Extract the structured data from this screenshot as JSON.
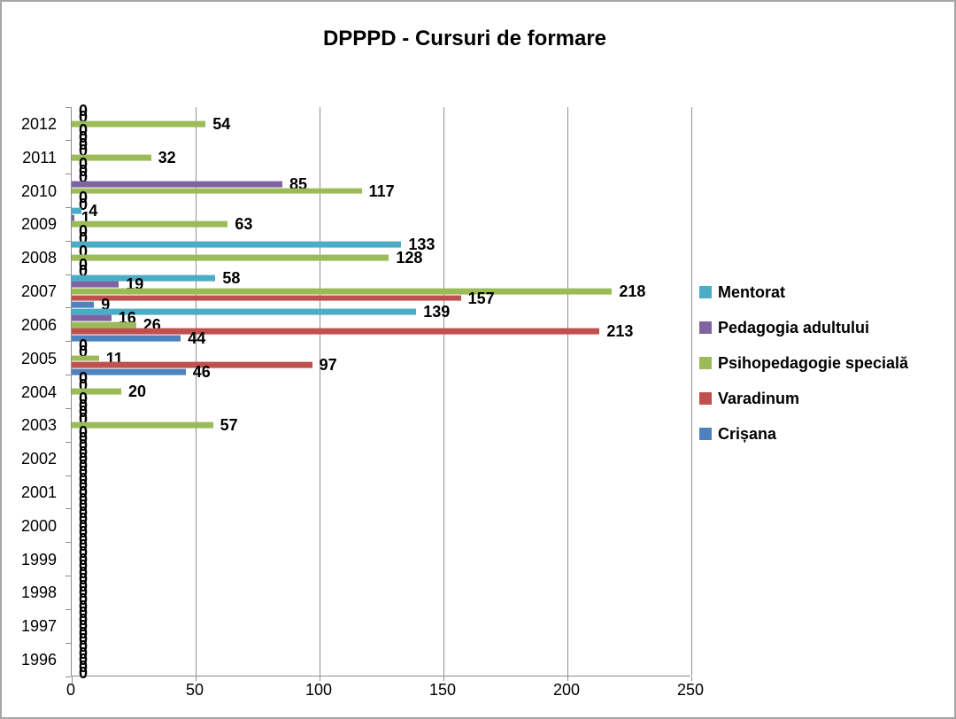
{
  "title": "DPPPD - Cursuri de formare",
  "chart_data": {
    "type": "bar",
    "orientation": "horizontal",
    "title": "DPPPD - Cursuri de formare",
    "categories": [
      "2012",
      "2011",
      "2010",
      "2009",
      "2008",
      "2007",
      "2006",
      "2005",
      "2004",
      "2003",
      "2002",
      "2001",
      "2000",
      "1999",
      "1998",
      "1997",
      "1996"
    ],
    "series": [
      {
        "name": "Mentorat",
        "color": "#4BACC6",
        "values": [
          0,
          0,
          0,
          4,
          133,
          58,
          139,
          0,
          0,
          0,
          0,
          0,
          0,
          0,
          0,
          0,
          0
        ]
      },
      {
        "name": "Pedagogia adultului",
        "color": "#8064A2",
        "values": [
          0,
          0,
          85,
          1,
          0,
          19,
          16,
          0,
          0,
          0,
          0,
          0,
          0,
          0,
          0,
          0,
          0
        ]
      },
      {
        "name": "Psihopedagogie specială",
        "color": "#9BBB59",
        "values": [
          54,
          32,
          117,
          63,
          128,
          218,
          26,
          11,
          20,
          57,
          0,
          0,
          0,
          0,
          0,
          0,
          0
        ]
      },
      {
        "name": "Varadinum",
        "color": "#C0504D",
        "values": [
          0,
          0,
          0,
          0,
          0,
          157,
          213,
          97,
          0,
          0,
          0,
          0,
          0,
          0,
          0,
          0,
          0
        ]
      },
      {
        "name": "Crișana",
        "color": "#4F81BD",
        "values": [
          0,
          0,
          0,
          0,
          0,
          9,
          44,
          46,
          0,
          0,
          0,
          0,
          0,
          0,
          0,
          0,
          0
        ]
      }
    ],
    "x_ticks": [
      0,
      50,
      100,
      150,
      200,
      250
    ],
    "xlim": [
      0,
      250
    ],
    "grid": true,
    "data_labels": true,
    "legend_position": "right"
  }
}
